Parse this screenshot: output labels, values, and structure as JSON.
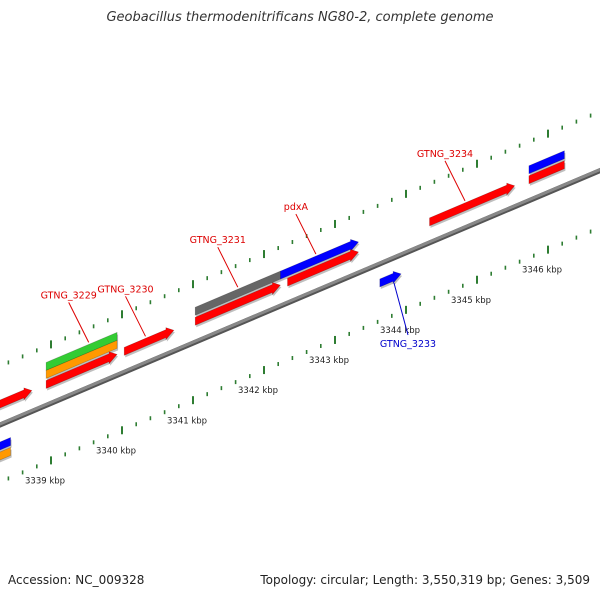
{
  "title": "Geobacillus thermodenitrificans NG80-2, complete genome",
  "footer": {
    "accession": "Accession: NC_009328",
    "summary": "Topology: circular; Length: 3,550,319 bp; Genes: 3,509"
  },
  "colors": {
    "backbone": "#888888",
    "tick": "#2e7d32",
    "cds_forward": "#ff0000",
    "cds_reverse": "#0000ff",
    "gene_green": "#33cc33",
    "gene_orange": "#ff9900",
    "gene_gray": "#666666",
    "label_red": "#dd0000",
    "label_blue": "#0000cc"
  },
  "scale_labels": [
    {
      "kbp": 3339,
      "text": "3339 kbp"
    },
    {
      "kbp": 3340,
      "text": "3340 kbp"
    },
    {
      "kbp": 3341,
      "text": "3341 kbp"
    },
    {
      "kbp": 3342,
      "text": "3342 kbp"
    },
    {
      "kbp": 3343,
      "text": "3343 kbp"
    },
    {
      "kbp": 3344,
      "text": "3344 kbp"
    },
    {
      "kbp": 3345,
      "text": "3345 kbp"
    },
    {
      "kbp": 3346,
      "text": "3346 kbp"
    }
  ],
  "features": [
    {
      "name": "",
      "kind": "cds_forward",
      "start": 3338.3,
      "end": 3338.9,
      "lane": "top",
      "arrow": "right"
    },
    {
      "name": "",
      "kind": "cds_reverse",
      "start": 3338.3,
      "end": 3338.6,
      "lane": "bottom",
      "arrow": "none"
    },
    {
      "name": "",
      "kind": "gene_orange",
      "start": 3338.3,
      "end": 3338.6,
      "lane": "bottom2",
      "arrow": "none"
    },
    {
      "name": "GTNG_3229",
      "kind": "gene_green",
      "start": 3339.1,
      "end": 3340.1,
      "lane": "outer3",
      "arrow": "none"
    },
    {
      "name": "",
      "kind": "gene_orange",
      "start": 3339.1,
      "end": 3340.1,
      "lane": "outer2",
      "arrow": "none"
    },
    {
      "name": "",
      "kind": "cds_forward",
      "start": 3339.1,
      "end": 3340.1,
      "lane": "outer1",
      "arrow": "right"
    },
    {
      "name": "GTNG_3230",
      "kind": "cds_forward",
      "start": 3340.2,
      "end": 3340.9,
      "lane": "outer1",
      "arrow": "right"
    },
    {
      "name": "GTNG_3231",
      "kind": "gene_gray",
      "start": 3341.2,
      "end": 3342.4,
      "lane": "outer2",
      "arrow": "none"
    },
    {
      "name": "",
      "kind": "cds_forward",
      "start": 3341.2,
      "end": 3342.4,
      "lane": "outer1",
      "arrow": "right"
    },
    {
      "name": "pdxA",
      "kind": "cds_reverse",
      "start": 3342.4,
      "end": 3343.5,
      "lane": "outer2",
      "arrow": "right"
    },
    {
      "name": "",
      "kind": "cds_forward",
      "start": 3342.5,
      "end": 3343.5,
      "lane": "outer1",
      "arrow": "right"
    },
    {
      "name": "GTNG_3233",
      "kind": "cds_reverse",
      "start": 3343.8,
      "end": 3344.1,
      "lane": "inner1",
      "arrow": "right"
    },
    {
      "name": "GTNG_3234",
      "kind": "cds_forward",
      "start": 3344.5,
      "end": 3345.7,
      "lane": "outer1",
      "arrow": "right"
    },
    {
      "name": "",
      "kind": "cds_reverse",
      "start": 3345.9,
      "end": 3346.4,
      "lane": "outer2",
      "arrow": "none"
    },
    {
      "name": "",
      "kind": "cds_forward",
      "start": 3345.9,
      "end": 3346.4,
      "lane": "outer1",
      "arrow": "none"
    }
  ],
  "labels": [
    {
      "text": "GTNG_3229",
      "color": "label_red",
      "anchor_kbp": 3339.7,
      "lane": "outer3"
    },
    {
      "text": "GTNG_3230",
      "color": "label_red",
      "anchor_kbp": 3340.5,
      "lane": "outer1"
    },
    {
      "text": "GTNG_3231",
      "color": "label_red",
      "anchor_kbp": 3341.8,
      "lane": "outer2"
    },
    {
      "text": "pdxA",
      "color": "label_red",
      "anchor_kbp": 3342.9,
      "lane": "outer2"
    },
    {
      "text": "GTNG_3234",
      "color": "label_red",
      "anchor_kbp": 3345.0,
      "lane": "outer1"
    },
    {
      "text": "GTNG_3233",
      "color": "label_blue",
      "anchor_kbp": 3344.0,
      "lane": "inner1"
    }
  ]
}
